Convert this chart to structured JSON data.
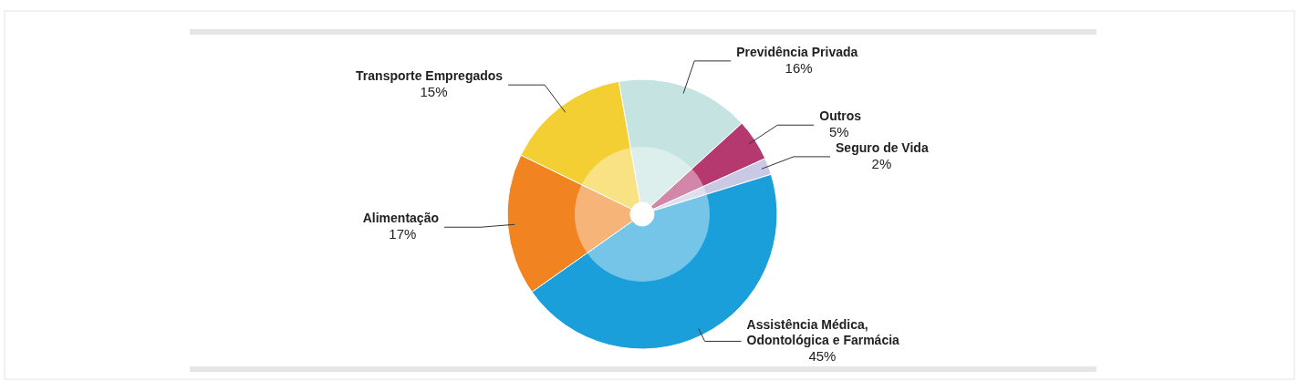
{
  "chart_data": {
    "type": "donut",
    "categories": [
      "Previdência Privada",
      "Outros",
      "Seguro de Vida",
      "Assistência Médica, Odontológica e Farmácia",
      "Alimentação",
      "Transporte Empregados"
    ],
    "values": [
      16,
      5,
      2,
      45,
      17,
      15
    ],
    "value_labels": [
      "16%",
      "5%",
      "2%",
      "45%",
      "17%",
      "15%"
    ],
    "colors": [
      "#c5e4e1",
      "#b5386f",
      "#c9c9e5",
      "#1a9fdb",
      "#f28321",
      "#f3cf33"
    ]
  }
}
